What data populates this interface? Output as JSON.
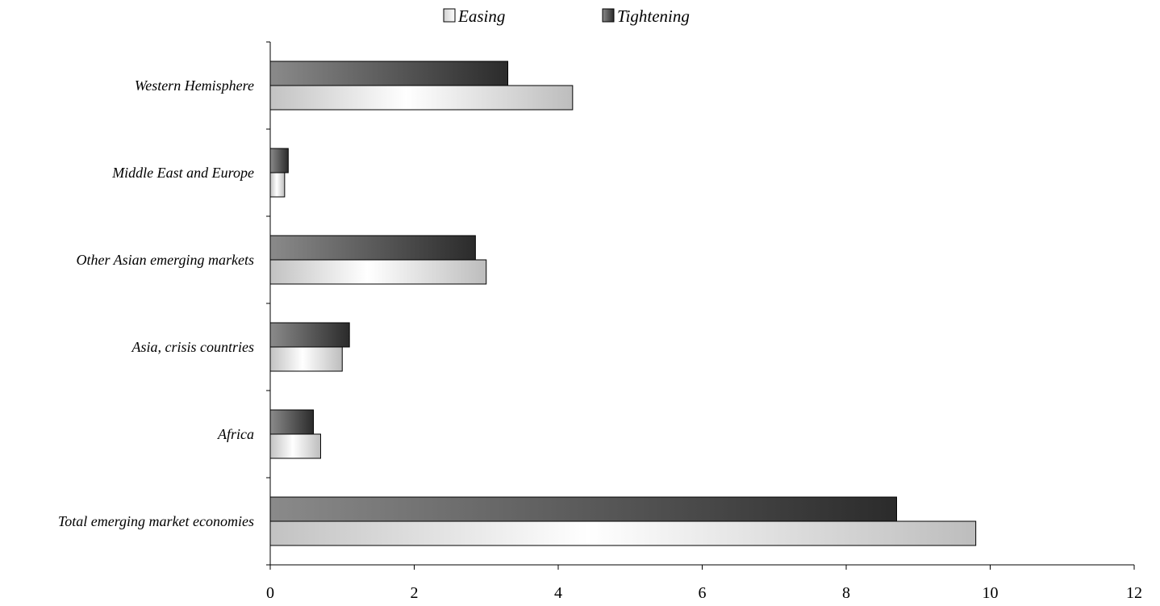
{
  "chart_data": {
    "type": "bar",
    "orientation": "horizontal",
    "categories": [
      "Total emerging market economies",
      "Africa",
      "Asia, crisis countries",
      "Other Asian emerging markets",
      "Middle East and Europe",
      "Western Hemisphere"
    ],
    "series": [
      {
        "name": "Easing",
        "values": [
          9.8,
          0.7,
          1.0,
          3.0,
          0.2,
          4.2
        ]
      },
      {
        "name": "Tightening",
        "values": [
          8.7,
          0.6,
          1.1,
          2.85,
          0.25,
          3.3
        ]
      }
    ],
    "xlim": [
      0,
      12
    ],
    "xticks": [
      "0",
      "2",
      "4",
      "6",
      "8",
      "10",
      "12"
    ],
    "grid": false,
    "legend_position": "top-center",
    "title": "",
    "xlabel": "",
    "ylabel": ""
  }
}
